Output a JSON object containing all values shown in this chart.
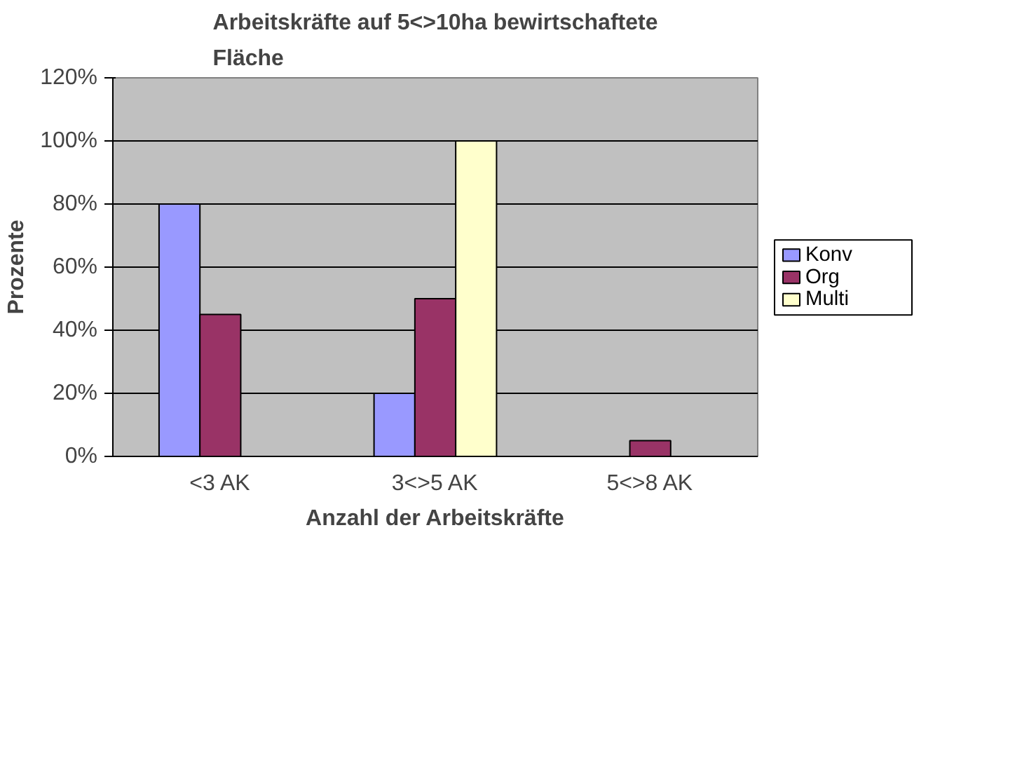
{
  "chart_data": {
    "type": "bar",
    "title": "Arbeitskräfte auf 5<>10ha bewirtschaftete\nFläche",
    "xlabel": "Anzahl der Arbeitskräfte",
    "ylabel": "Prozente",
    "categories": [
      "<3 AK",
      "3<>5 AK",
      "5<>8 AK"
    ],
    "series": [
      {
        "name": "Konv",
        "color": "#9999ff",
        "values": [
          80,
          20,
          null
        ]
      },
      {
        "name": "Org",
        "color": "#993366",
        "values": [
          45,
          50,
          5
        ]
      },
      {
        "name": "Multi",
        "color": "#ffffcc",
        "values": [
          null,
          100,
          null
        ]
      }
    ],
    "ylim": [
      0,
      120
    ],
    "yticks": [
      {
        "value": 0,
        "label": "0%"
      },
      {
        "value": 20,
        "label": "20%"
      },
      {
        "value": 40,
        "label": "40%"
      },
      {
        "value": 60,
        "label": "60%"
      },
      {
        "value": 80,
        "label": "80%"
      },
      {
        "value": 100,
        "label": "100%"
      },
      {
        "value": 120,
        "label": "120%"
      }
    ],
    "grid": "y",
    "legend": "right"
  }
}
